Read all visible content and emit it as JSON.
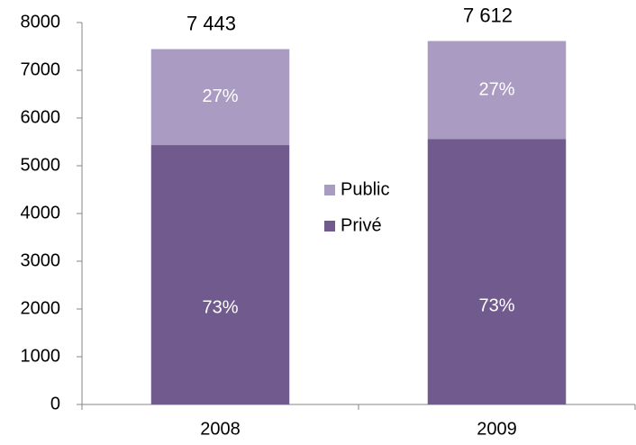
{
  "chart_data": {
    "type": "stacked_bar",
    "categories": [
      "2008",
      "2009"
    ],
    "series": [
      {
        "name": "Privé",
        "color": "#715a8e",
        "values": [
          5433,
          5557
        ],
        "share_labels": [
          "73%",
          "73%"
        ]
      },
      {
        "name": "Public",
        "color": "#a99bc2",
        "values": [
          2010,
          2055
        ],
        "share_labels": [
          "27%",
          "27%"
        ]
      }
    ],
    "totals": [
      7443,
      7612
    ],
    "total_labels": [
      "7 443",
      "7 612"
    ],
    "ylim": [
      0,
      8000
    ],
    "yticks": [
      0,
      1000,
      2000,
      3000,
      4000,
      5000,
      6000,
      7000,
      8000
    ],
    "grid": false
  }
}
